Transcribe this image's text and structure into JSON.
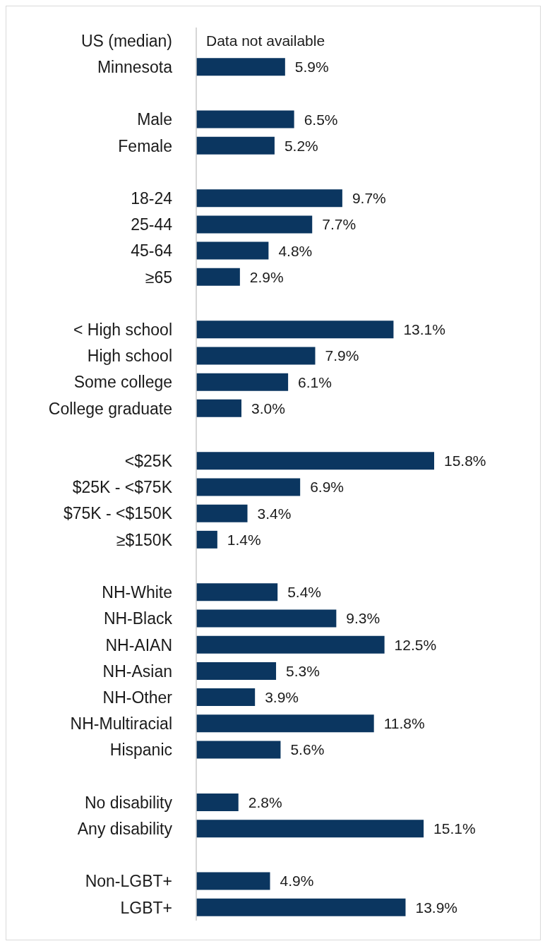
{
  "chart_data": {
    "type": "bar",
    "orientation": "horizontal",
    "categories": [
      "US (median)",
      "Minnesota",
      null,
      "Male",
      "Female",
      null,
      "18-24",
      "25-44",
      "45-64",
      "≥65",
      null,
      "< High school",
      "High school",
      "Some college",
      "College graduate",
      null,
      "<$25K",
      "$25K - <$75K",
      "$75K - <$150K",
      "≥$150K",
      null,
      "NH-White",
      "NH-Black",
      "NH-AIAN",
      "NH-Asian",
      "NH-Other",
      "NH-Multiracial",
      "Hispanic",
      null,
      "No disability",
      "Any disability",
      null,
      "Non-LGBT+",
      "LGBT+"
    ],
    "values": [
      null,
      5.9,
      null,
      6.5,
      5.2,
      null,
      9.7,
      7.7,
      4.8,
      2.9,
      null,
      13.1,
      7.9,
      6.1,
      3.0,
      null,
      15.8,
      6.9,
      3.4,
      1.4,
      null,
      5.4,
      9.3,
      12.5,
      5.3,
      3.9,
      11.8,
      5.6,
      null,
      2.8,
      15.1,
      null,
      4.9,
      13.9
    ],
    "value_labels": [
      null,
      "5.9%",
      null,
      "6.5%",
      "5.2%",
      null,
      "9.7%",
      "7.7%",
      "4.8%",
      "2.9%",
      null,
      "13.1%",
      "7.9%",
      "6.1%",
      "3.0%",
      null,
      "15.8%",
      "6.9%",
      "3.4%",
      "1.4%",
      null,
      "5.4%",
      "9.3%",
      "12.5%",
      "5.3%",
      "3.9%",
      "11.8%",
      "5.6%",
      null,
      "2.8%",
      "15.1%",
      null,
      "4.9%",
      "13.9%"
    ],
    "color": "#0b3660",
    "annotations": [
      "Data not available"
    ]
  }
}
